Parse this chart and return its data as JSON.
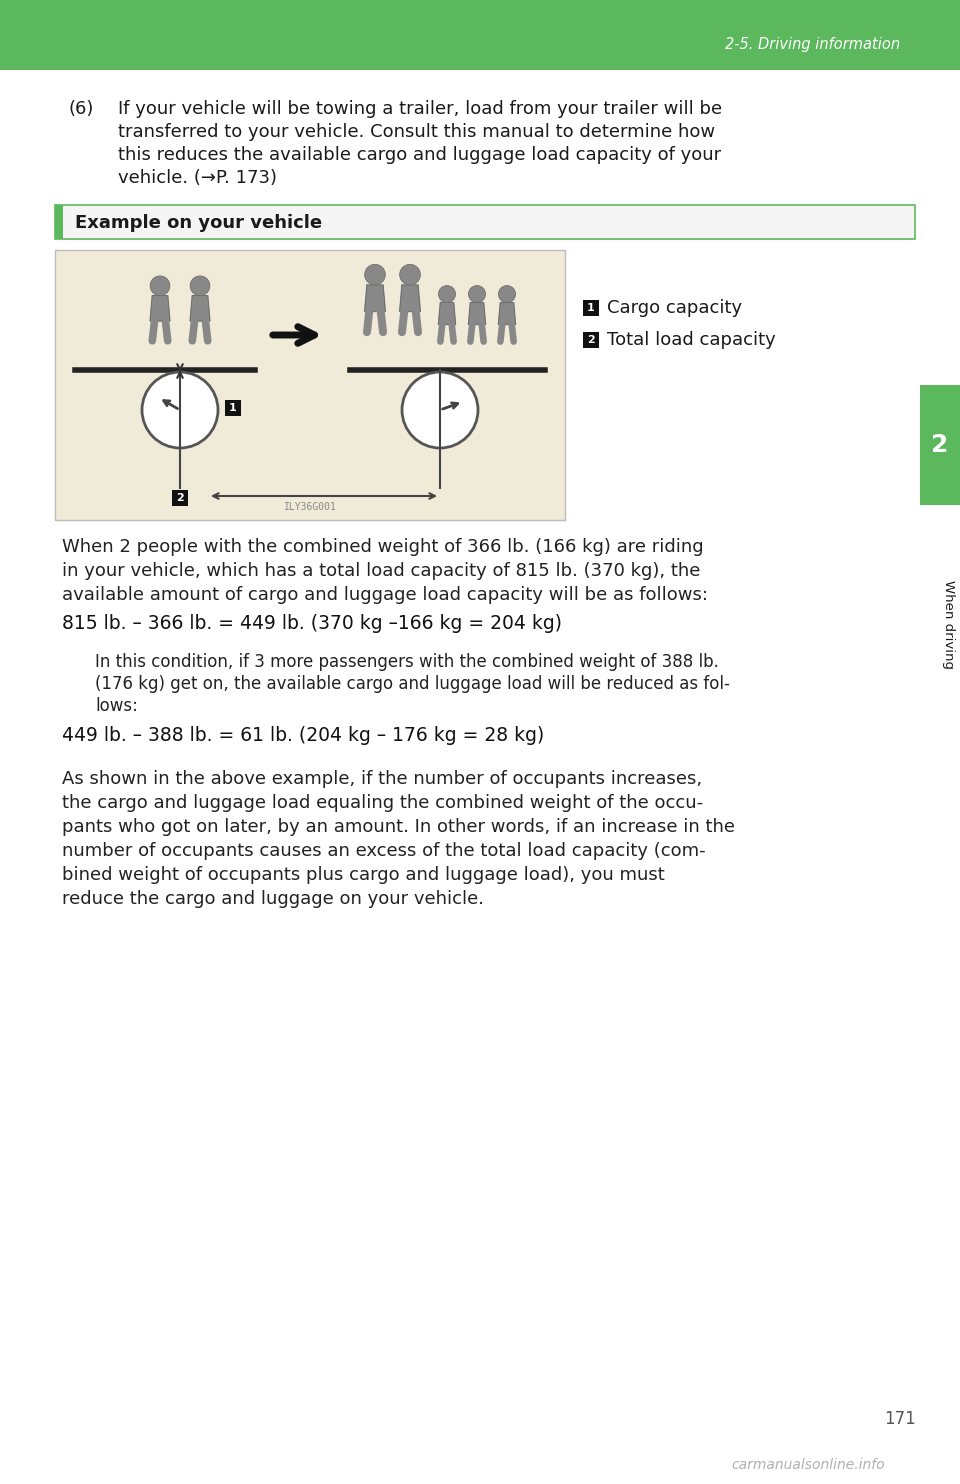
{
  "page_bg": "#ffffff",
  "header_bg": "#5cb85c",
  "header_text": "2-5. Driving information",
  "header_text_color": "#ffffff",
  "right_tab_bg": "#5cb85c",
  "right_tab_text": "When driving",
  "right_tab_number": "2",
  "page_number": "171",
  "watermark": "carmanualsonline.info",
  "section_heading": "Example on your vehicle",
  "section_heading_bg": "#f5f5f5",
  "section_heading_border": "#5cb85c",
  "legend_1": "Cargo capacity",
  "legend_2": "Total load capacity",
  "image_bg": "#f0ead8",
  "image_border": "#cccccc",
  "font_color": "#1a1a1a",
  "body_color": "#222222",
  "person_color": "#888888",
  "person_outline": "#666666",
  "formula_color": "#111111",
  "indent_color": "#222222",
  "page_num_color": "#555555",
  "watermark_color": "#b0b0b0"
}
